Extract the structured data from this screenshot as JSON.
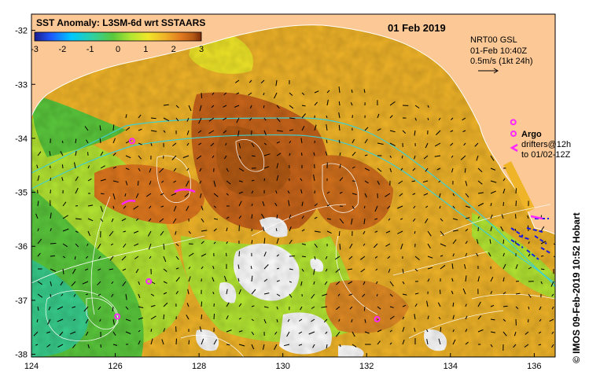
{
  "map": {
    "title": "SST Anomaly: L3SM-6d wrt SSTAARS",
    "date": "01 Feb 2019",
    "info_lines": [
      "NRT00 GSL",
      "01-Feb 10:40Z",
      "0.5m/s (1kt 24h)"
    ],
    "colorbar": {
      "min": -3,
      "max": 3,
      "tick_labels": [
        "-3",
        "-2",
        "-1",
        "0",
        "1",
        "2",
        "3"
      ],
      "colors": [
        "#1a1a8c",
        "#1e5aff",
        "#00c8ff",
        "#2fd0a0",
        "#5ac83c",
        "#b4e632",
        "#f0e628",
        "#f0b428",
        "#e0781e",
        "#b45a14",
        "#7a2a0a"
      ]
    },
    "legend": {
      "argo_label": "Argo",
      "drifters_line1": "drifters@12h",
      "drifters_line2": "to 01/02-12Z"
    },
    "credit": "© IMOS 09-Feb-2019 10:52 Hobart",
    "lon_ticks": [
      "124",
      "126",
      "128",
      "130",
      "132",
      "134",
      "136"
    ],
    "lat_ticks": [
      "-32",
      "-33",
      "-34",
      "-35",
      "-36",
      "-37",
      "-38"
    ],
    "colors": {
      "land": "#fcc896",
      "argo": "#ff28ff",
      "drifter": "#ff28ff",
      "contour": "#ffffff",
      "bathy": "#40d0d0",
      "coast": "#ffffff"
    },
    "argo_floats": [
      {
        "lon": 126.4,
        "lat": -34.05
      },
      {
        "lon": 126.8,
        "lat": -36.65
      },
      {
        "lon": 126.05,
        "lat": -37.3
      },
      {
        "lon": 132.25,
        "lat": -37.35
      },
      {
        "lon": 135.5,
        "lat": -33.7
      }
    ]
  }
}
